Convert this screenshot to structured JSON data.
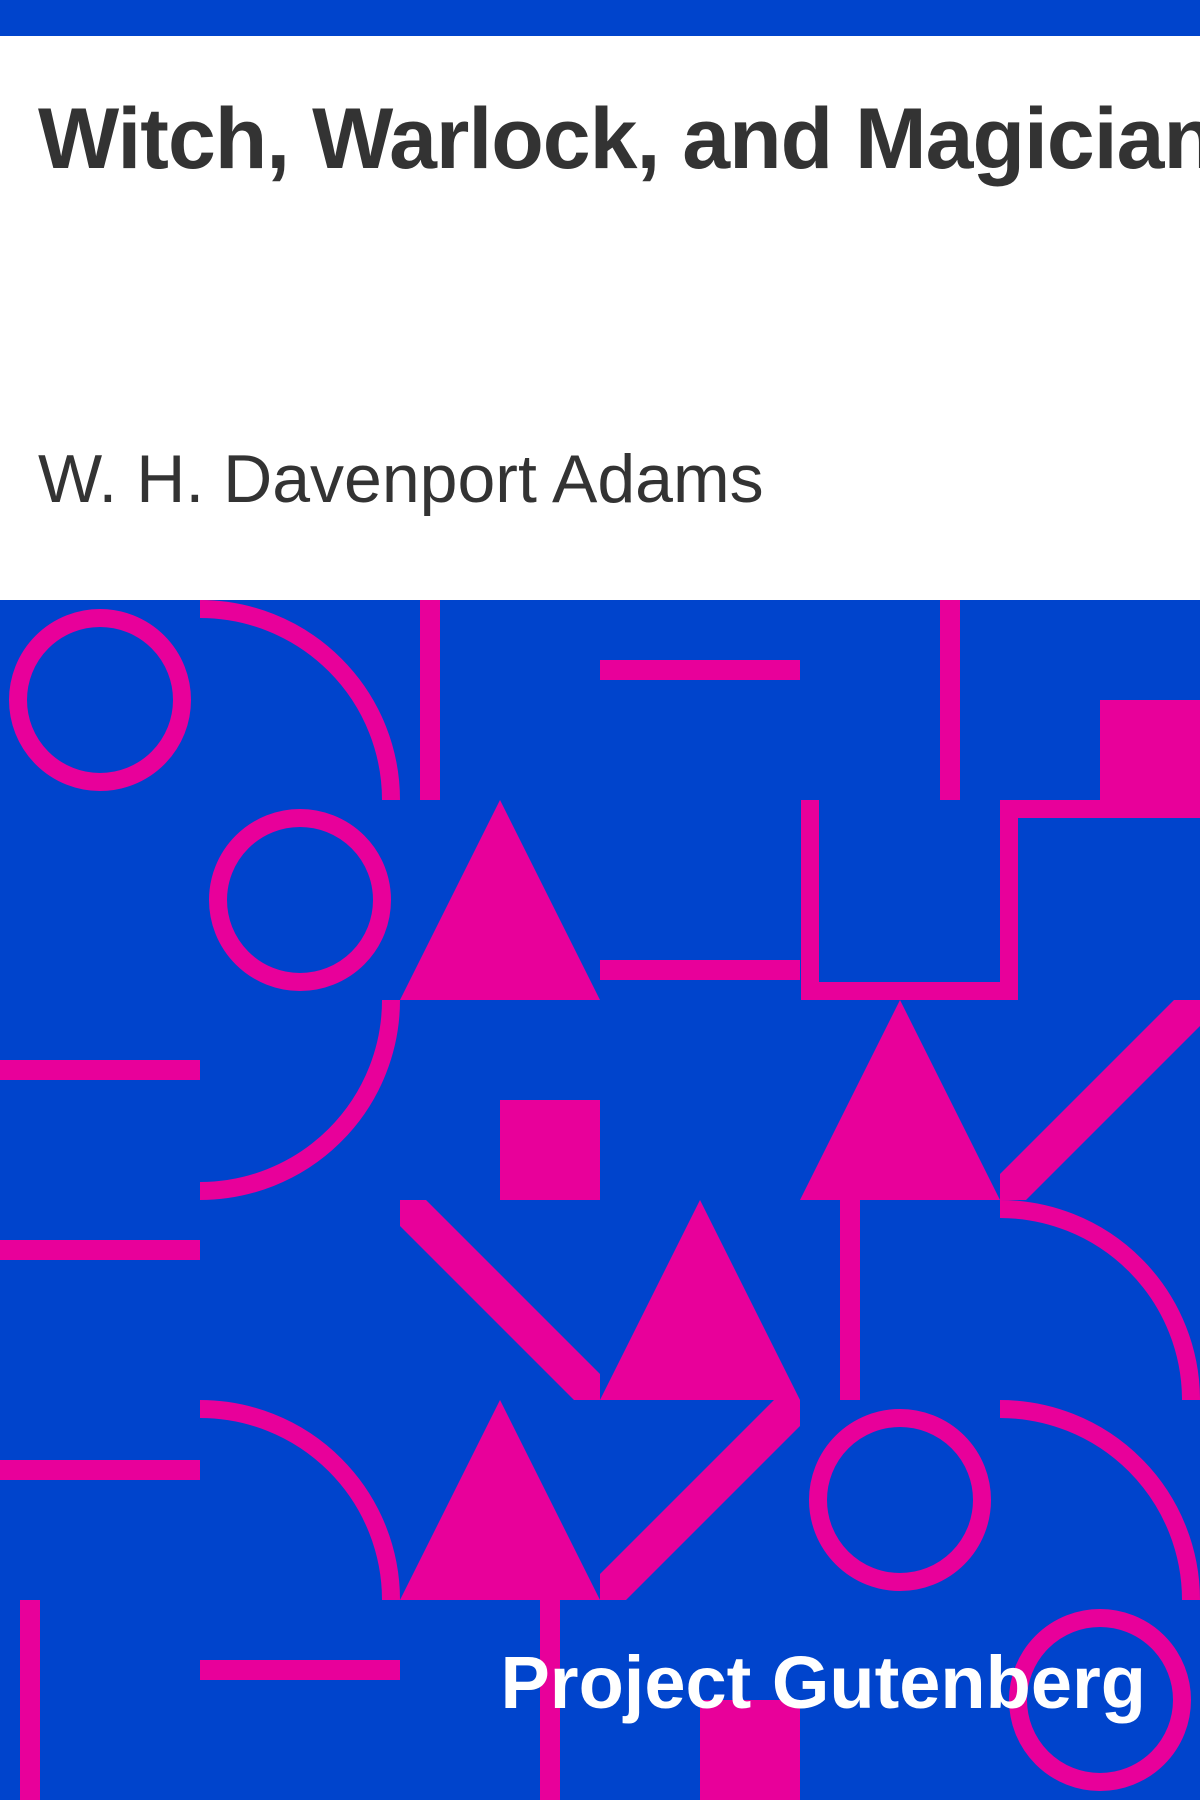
{
  "cover": {
    "title": "Witch, Warlock, and Magician",
    "author": "W. H. Davenport Adams",
    "publisher": "Project Gutenberg"
  },
  "colors": {
    "band": "#0044cc",
    "background": "#ffffff",
    "text": "#333333",
    "pattern_background": "#0044cc",
    "pattern_shapes": "#e8009a",
    "brand_text": "#ffffff"
  }
}
